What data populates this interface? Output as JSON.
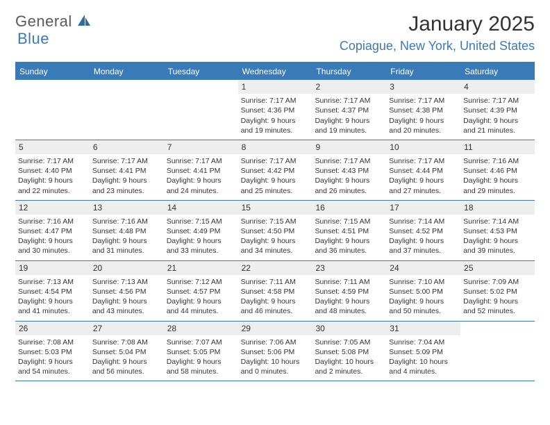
{
  "logo": {
    "part1": "General",
    "part2": "Blue"
  },
  "title": "January 2025",
  "location": "Copiague, New York, United States",
  "header_bg": "#3a7ab8",
  "weekdays": [
    "Sunday",
    "Monday",
    "Tuesday",
    "Wednesday",
    "Thursday",
    "Friday",
    "Saturday"
  ],
  "weeks": [
    [
      {
        "n": "",
        "l1": "",
        "l2": "",
        "l3": "",
        "l4": "",
        "empty": true
      },
      {
        "n": "",
        "l1": "",
        "l2": "",
        "l3": "",
        "l4": "",
        "empty": true
      },
      {
        "n": "",
        "l1": "",
        "l2": "",
        "l3": "",
        "l4": "",
        "empty": true
      },
      {
        "n": "1",
        "l1": "Sunrise: 7:17 AM",
        "l2": "Sunset: 4:36 PM",
        "l3": "Daylight: 9 hours",
        "l4": "and 19 minutes."
      },
      {
        "n": "2",
        "l1": "Sunrise: 7:17 AM",
        "l2": "Sunset: 4:37 PM",
        "l3": "Daylight: 9 hours",
        "l4": "and 19 minutes."
      },
      {
        "n": "3",
        "l1": "Sunrise: 7:17 AM",
        "l2": "Sunset: 4:38 PM",
        "l3": "Daylight: 9 hours",
        "l4": "and 20 minutes."
      },
      {
        "n": "4",
        "l1": "Sunrise: 7:17 AM",
        "l2": "Sunset: 4:39 PM",
        "l3": "Daylight: 9 hours",
        "l4": "and 21 minutes."
      }
    ],
    [
      {
        "n": "5",
        "l1": "Sunrise: 7:17 AM",
        "l2": "Sunset: 4:40 PM",
        "l3": "Daylight: 9 hours",
        "l4": "and 22 minutes."
      },
      {
        "n": "6",
        "l1": "Sunrise: 7:17 AM",
        "l2": "Sunset: 4:41 PM",
        "l3": "Daylight: 9 hours",
        "l4": "and 23 minutes."
      },
      {
        "n": "7",
        "l1": "Sunrise: 7:17 AM",
        "l2": "Sunset: 4:41 PM",
        "l3": "Daylight: 9 hours",
        "l4": "and 24 minutes."
      },
      {
        "n": "8",
        "l1": "Sunrise: 7:17 AM",
        "l2": "Sunset: 4:42 PM",
        "l3": "Daylight: 9 hours",
        "l4": "and 25 minutes."
      },
      {
        "n": "9",
        "l1": "Sunrise: 7:17 AM",
        "l2": "Sunset: 4:43 PM",
        "l3": "Daylight: 9 hours",
        "l4": "and 26 minutes."
      },
      {
        "n": "10",
        "l1": "Sunrise: 7:17 AM",
        "l2": "Sunset: 4:44 PM",
        "l3": "Daylight: 9 hours",
        "l4": "and 27 minutes."
      },
      {
        "n": "11",
        "l1": "Sunrise: 7:16 AM",
        "l2": "Sunset: 4:46 PM",
        "l3": "Daylight: 9 hours",
        "l4": "and 29 minutes."
      }
    ],
    [
      {
        "n": "12",
        "l1": "Sunrise: 7:16 AM",
        "l2": "Sunset: 4:47 PM",
        "l3": "Daylight: 9 hours",
        "l4": "and 30 minutes."
      },
      {
        "n": "13",
        "l1": "Sunrise: 7:16 AM",
        "l2": "Sunset: 4:48 PM",
        "l3": "Daylight: 9 hours",
        "l4": "and 31 minutes."
      },
      {
        "n": "14",
        "l1": "Sunrise: 7:15 AM",
        "l2": "Sunset: 4:49 PM",
        "l3": "Daylight: 9 hours",
        "l4": "and 33 minutes."
      },
      {
        "n": "15",
        "l1": "Sunrise: 7:15 AM",
        "l2": "Sunset: 4:50 PM",
        "l3": "Daylight: 9 hours",
        "l4": "and 34 minutes."
      },
      {
        "n": "16",
        "l1": "Sunrise: 7:15 AM",
        "l2": "Sunset: 4:51 PM",
        "l3": "Daylight: 9 hours",
        "l4": "and 36 minutes."
      },
      {
        "n": "17",
        "l1": "Sunrise: 7:14 AM",
        "l2": "Sunset: 4:52 PM",
        "l3": "Daylight: 9 hours",
        "l4": "and 37 minutes."
      },
      {
        "n": "18",
        "l1": "Sunrise: 7:14 AM",
        "l2": "Sunset: 4:53 PM",
        "l3": "Daylight: 9 hours",
        "l4": "and 39 minutes."
      }
    ],
    [
      {
        "n": "19",
        "l1": "Sunrise: 7:13 AM",
        "l2": "Sunset: 4:54 PM",
        "l3": "Daylight: 9 hours",
        "l4": "and 41 minutes."
      },
      {
        "n": "20",
        "l1": "Sunrise: 7:13 AM",
        "l2": "Sunset: 4:56 PM",
        "l3": "Daylight: 9 hours",
        "l4": "and 43 minutes."
      },
      {
        "n": "21",
        "l1": "Sunrise: 7:12 AM",
        "l2": "Sunset: 4:57 PM",
        "l3": "Daylight: 9 hours",
        "l4": "and 44 minutes."
      },
      {
        "n": "22",
        "l1": "Sunrise: 7:11 AM",
        "l2": "Sunset: 4:58 PM",
        "l3": "Daylight: 9 hours",
        "l4": "and 46 minutes."
      },
      {
        "n": "23",
        "l1": "Sunrise: 7:11 AM",
        "l2": "Sunset: 4:59 PM",
        "l3": "Daylight: 9 hours",
        "l4": "and 48 minutes."
      },
      {
        "n": "24",
        "l1": "Sunrise: 7:10 AM",
        "l2": "Sunset: 5:00 PM",
        "l3": "Daylight: 9 hours",
        "l4": "and 50 minutes."
      },
      {
        "n": "25",
        "l1": "Sunrise: 7:09 AM",
        "l2": "Sunset: 5:02 PM",
        "l3": "Daylight: 9 hours",
        "l4": "and 52 minutes."
      }
    ],
    [
      {
        "n": "26",
        "l1": "Sunrise: 7:08 AM",
        "l2": "Sunset: 5:03 PM",
        "l3": "Daylight: 9 hours",
        "l4": "and 54 minutes."
      },
      {
        "n": "27",
        "l1": "Sunrise: 7:08 AM",
        "l2": "Sunset: 5:04 PM",
        "l3": "Daylight: 9 hours",
        "l4": "and 56 minutes."
      },
      {
        "n": "28",
        "l1": "Sunrise: 7:07 AM",
        "l2": "Sunset: 5:05 PM",
        "l3": "Daylight: 9 hours",
        "l4": "and 58 minutes."
      },
      {
        "n": "29",
        "l1": "Sunrise: 7:06 AM",
        "l2": "Sunset: 5:06 PM",
        "l3": "Daylight: 10 hours",
        "l4": "and 0 minutes."
      },
      {
        "n": "30",
        "l1": "Sunrise: 7:05 AM",
        "l2": "Sunset: 5:08 PM",
        "l3": "Daylight: 10 hours",
        "l4": "and 2 minutes."
      },
      {
        "n": "31",
        "l1": "Sunrise: 7:04 AM",
        "l2": "Sunset: 5:09 PM",
        "l3": "Daylight: 10 hours",
        "l4": "and 4 minutes."
      },
      {
        "n": "",
        "l1": "",
        "l2": "",
        "l3": "",
        "l4": "",
        "empty": true
      }
    ]
  ]
}
